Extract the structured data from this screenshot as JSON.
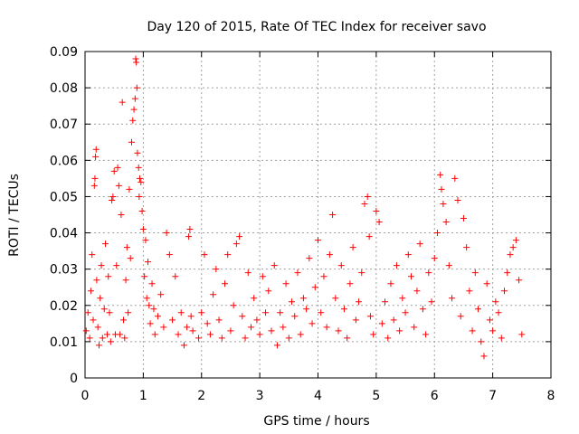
{
  "chart_data": {
    "type": "scatter",
    "title": "Day 120 of 2015, Rate Of TEC Index for receiver savo",
    "xlabel": "GPS time / hours",
    "ylabel": "ROTI / TECUs",
    "xlim": [
      0,
      8
    ],
    "ylim": [
      0,
      0.09
    ],
    "x_ticks": [
      "0",
      "1",
      "2",
      "3",
      "4",
      "5",
      "6",
      "7",
      "8"
    ],
    "y_ticks": [
      "0",
      "0.01",
      "0.02",
      "0.03",
      "0.04",
      "0.05",
      "0.06",
      "0.07",
      "0.08",
      "0.09"
    ],
    "grid": true,
    "marker": "plus",
    "series_color": "#ff0000",
    "series": [
      {
        "name": "ROTI",
        "points": [
          [
            0.02,
            0.013
          ],
          [
            0.05,
            0.018
          ],
          [
            0.08,
            0.011
          ],
          [
            0.1,
            0.024
          ],
          [
            0.12,
            0.034
          ],
          [
            0.14,
            0.016
          ],
          [
            0.16,
            0.053
          ],
          [
            0.17,
            0.055
          ],
          [
            0.18,
            0.061
          ],
          [
            0.19,
            0.063
          ],
          [
            0.2,
            0.027
          ],
          [
            0.22,
            0.014
          ],
          [
            0.24,
            0.009
          ],
          [
            0.26,
            0.022
          ],
          [
            0.28,
            0.031
          ],
          [
            0.3,
            0.011
          ],
          [
            0.33,
            0.019
          ],
          [
            0.35,
            0.037
          ],
          [
            0.38,
            0.012
          ],
          [
            0.4,
            0.028
          ],
          [
            0.42,
            0.018
          ],
          [
            0.44,
            0.01
          ],
          [
            0.46,
            0.049
          ],
          [
            0.48,
            0.05
          ],
          [
            0.5,
            0.057
          ],
          [
            0.52,
            0.012
          ],
          [
            0.54,
            0.031
          ],
          [
            0.56,
            0.058
          ],
          [
            0.58,
            0.053
          ],
          [
            0.6,
            0.012
          ],
          [
            0.62,
            0.045
          ],
          [
            0.64,
            0.076
          ],
          [
            0.66,
            0.016
          ],
          [
            0.68,
            0.011
          ],
          [
            0.7,
            0.027
          ],
          [
            0.72,
            0.036
          ],
          [
            0.74,
            0.018
          ],
          [
            0.76,
            0.052
          ],
          [
            0.78,
            0.033
          ],
          [
            0.8,
            0.065
          ],
          [
            0.82,
            0.071
          ],
          [
            0.84,
            0.074
          ],
          [
            0.86,
            0.077
          ],
          [
            0.87,
            0.088
          ],
          [
            0.88,
            0.087
          ],
          [
            0.89,
            0.08
          ],
          [
            0.9,
            0.062
          ],
          [
            0.92,
            0.058
          ],
          [
            0.93,
            0.05
          ],
          [
            0.94,
            0.055
          ],
          [
            0.96,
            0.054
          ],
          [
            0.98,
            0.046
          ],
          [
            1.0,
            0.041
          ],
          [
            1.02,
            0.028
          ],
          [
            1.04,
            0.038
          ],
          [
            1.06,
            0.022
          ],
          [
            1.08,
            0.032
          ],
          [
            1.1,
            0.02
          ],
          [
            1.12,
            0.015
          ],
          [
            1.15,
            0.026
          ],
          [
            1.18,
            0.019
          ],
          [
            1.2,
            0.012
          ],
          [
            1.25,
            0.017
          ],
          [
            1.3,
            0.023
          ],
          [
            1.35,
            0.014
          ],
          [
            1.4,
            0.04
          ],
          [
            1.45,
            0.034
          ],
          [
            1.5,
            0.016
          ],
          [
            1.55,
            0.028
          ],
          [
            1.6,
            0.012
          ],
          [
            1.65,
            0.018
          ],
          [
            1.7,
            0.009
          ],
          [
            1.75,
            0.014
          ],
          [
            1.78,
            0.039
          ],
          [
            1.8,
            0.041
          ],
          [
            1.82,
            0.017
          ],
          [
            1.85,
            0.013
          ],
          [
            1.95,
            0.011
          ],
          [
            2.0,
            0.018
          ],
          [
            2.05,
            0.034
          ],
          [
            2.1,
            0.015
          ],
          [
            2.15,
            0.012
          ],
          [
            2.2,
            0.023
          ],
          [
            2.25,
            0.03
          ],
          [
            2.3,
            0.016
          ],
          [
            2.35,
            0.011
          ],
          [
            2.4,
            0.026
          ],
          [
            2.45,
            0.034
          ],
          [
            2.5,
            0.013
          ],
          [
            2.55,
            0.02
          ],
          [
            2.6,
            0.037
          ],
          [
            2.65,
            0.039
          ],
          [
            2.7,
            0.017
          ],
          [
            2.75,
            0.011
          ],
          [
            2.8,
            0.029
          ],
          [
            2.85,
            0.014
          ],
          [
            2.9,
            0.022
          ],
          [
            2.95,
            0.016
          ],
          [
            3.0,
            0.012
          ],
          [
            3.05,
            0.028
          ],
          [
            3.1,
            0.018
          ],
          [
            3.15,
            0.024
          ],
          [
            3.2,
            0.013
          ],
          [
            3.25,
            0.031
          ],
          [
            3.3,
            0.009
          ],
          [
            3.35,
            0.018
          ],
          [
            3.4,
            0.014
          ],
          [
            3.45,
            0.026
          ],
          [
            3.5,
            0.011
          ],
          [
            3.55,
            0.021
          ],
          [
            3.6,
            0.017
          ],
          [
            3.65,
            0.029
          ],
          [
            3.7,
            0.012
          ],
          [
            3.75,
            0.022
          ],
          [
            3.8,
            0.019
          ],
          [
            3.85,
            0.033
          ],
          [
            3.9,
            0.015
          ],
          [
            3.95,
            0.025
          ],
          [
            4.0,
            0.038
          ],
          [
            4.05,
            0.018
          ],
          [
            4.1,
            0.028
          ],
          [
            4.15,
            0.014
          ],
          [
            4.2,
            0.034
          ],
          [
            4.25,
            0.045
          ],
          [
            4.3,
            0.022
          ],
          [
            4.35,
            0.013
          ],
          [
            4.4,
            0.031
          ],
          [
            4.45,
            0.019
          ],
          [
            4.5,
            0.011
          ],
          [
            4.55,
            0.026
          ],
          [
            4.6,
            0.036
          ],
          [
            4.65,
            0.016
          ],
          [
            4.7,
            0.021
          ],
          [
            4.75,
            0.029
          ],
          [
            4.8,
            0.048
          ],
          [
            4.85,
            0.05
          ],
          [
            4.88,
            0.039
          ],
          [
            4.9,
            0.017
          ],
          [
            4.95,
            0.012
          ],
          [
            5.0,
            0.046
          ],
          [
            5.05,
            0.043
          ],
          [
            5.1,
            0.015
          ],
          [
            5.15,
            0.021
          ],
          [
            5.2,
            0.011
          ],
          [
            5.25,
            0.026
          ],
          [
            5.3,
            0.016
          ],
          [
            5.35,
            0.031
          ],
          [
            5.4,
            0.013
          ],
          [
            5.45,
            0.022
          ],
          [
            5.5,
            0.018
          ],
          [
            5.55,
            0.034
          ],
          [
            5.6,
            0.028
          ],
          [
            5.65,
            0.014
          ],
          [
            5.7,
            0.024
          ],
          [
            5.75,
            0.037
          ],
          [
            5.8,
            0.019
          ],
          [
            5.85,
            0.012
          ],
          [
            5.9,
            0.029
          ],
          [
            5.95,
            0.021
          ],
          [
            6.0,
            0.033
          ],
          [
            6.05,
            0.04
          ],
          [
            6.1,
            0.056
          ],
          [
            6.12,
            0.052
          ],
          [
            6.15,
            0.048
          ],
          [
            6.2,
            0.043
          ],
          [
            6.25,
            0.031
          ],
          [
            6.3,
            0.022
          ],
          [
            6.35,
            0.055
          ],
          [
            6.4,
            0.049
          ],
          [
            6.45,
            0.017
          ],
          [
            6.5,
            0.044
          ],
          [
            6.55,
            0.036
          ],
          [
            6.6,
            0.024
          ],
          [
            6.65,
            0.013
          ],
          [
            6.7,
            0.029
          ],
          [
            6.75,
            0.019
          ],
          [
            6.8,
            0.01
          ],
          [
            6.85,
            0.006
          ],
          [
            6.9,
            0.026
          ],
          [
            6.95,
            0.016
          ],
          [
            7.0,
            0.013
          ],
          [
            7.05,
            0.021
          ],
          [
            7.1,
            0.018
          ],
          [
            7.15,
            0.011
          ],
          [
            7.2,
            0.024
          ],
          [
            7.25,
            0.029
          ],
          [
            7.3,
            0.034
          ],
          [
            7.35,
            0.036
          ],
          [
            7.4,
            0.038
          ],
          [
            7.45,
            0.027
          ],
          [
            7.5,
            0.012
          ]
        ]
      }
    ]
  }
}
